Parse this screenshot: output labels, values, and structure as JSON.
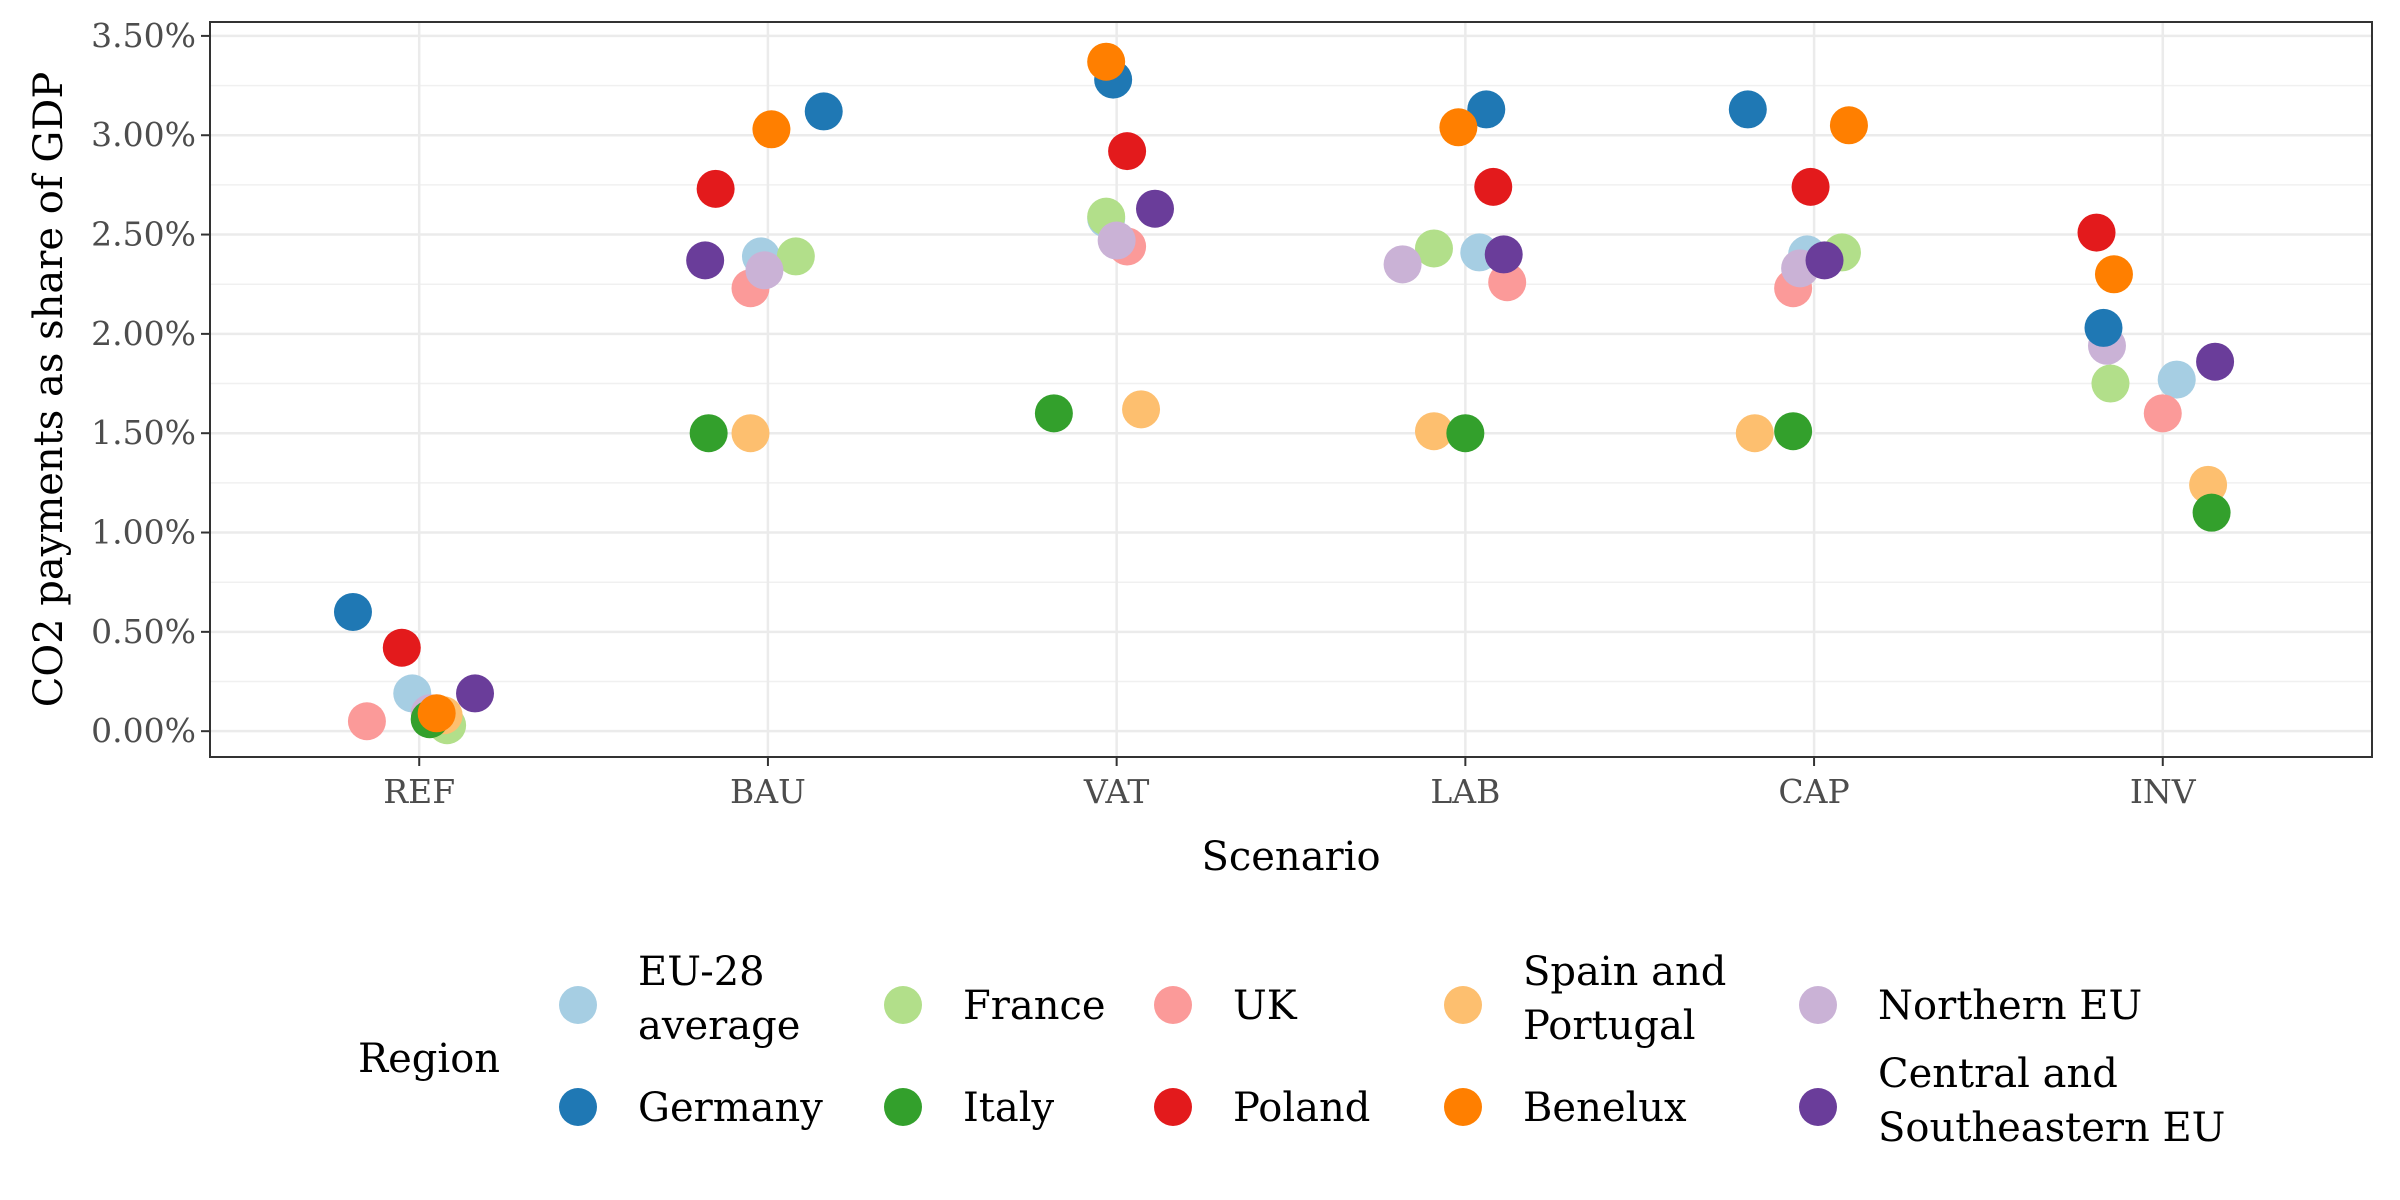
{
  "chart_data": {
    "type": "scatter",
    "title": "",
    "xlabel": "Scenario",
    "ylabel": "CO2 payments as share of GDP",
    "categories": [
      "REF",
      "BAU",
      "VAT",
      "LAB",
      "CAP",
      "INV"
    ],
    "ylim": [
      -0.13,
      3.57
    ],
    "yticks": [
      0.0,
      0.5,
      1.0,
      1.5,
      2.0,
      2.5,
      3.0,
      3.5
    ],
    "ytick_labels": [
      "0.00%",
      "0.50%",
      "1.00%",
      "1.50%",
      "2.00%",
      "2.50%",
      "3.00%",
      "3.50%"
    ],
    "grid": true,
    "jitter": true,
    "legend": {
      "title": "Region",
      "placement": "bottom"
    },
    "series": [
      {
        "name": "EU-28 average",
        "color": "#a6cee3",
        "values": [
          0.19,
          2.39,
          2.58,
          2.41,
          2.4,
          1.77
        ],
        "offsets": [
          -0.02,
          -0.02,
          -0.03,
          0.04,
          -0.02,
          0.04
        ]
      },
      {
        "name": "France",
        "color": "#b2df8a",
        "values": [
          0.03,
          2.39,
          2.59,
          2.43,
          2.41,
          1.75
        ],
        "offsets": [
          0.08,
          0.08,
          -0.03,
          -0.09,
          0.08,
          -0.15
        ]
      },
      {
        "name": "UK",
        "color": "#fb9a99",
        "values": [
          0.05,
          2.23,
          2.44,
          2.26,
          2.23,
          1.6
        ],
        "offsets": [
          -0.15,
          -0.05,
          0.03,
          0.12,
          -0.06,
          0.0
        ]
      },
      {
        "name": "Spain and Portugal",
        "color": "#fdbf6f",
        "values": [
          0.08,
          1.5,
          1.62,
          1.51,
          1.5,
          1.24
        ],
        "offsets": [
          0.07,
          -0.05,
          0.07,
          -0.09,
          -0.17,
          0.13
        ]
      },
      {
        "name": "Northern EU",
        "color": "#cab2d6",
        "values": [
          0.09,
          2.32,
          2.47,
          2.35,
          2.33,
          1.94
        ],
        "offsets": [
          0.03,
          -0.01,
          0.0,
          -0.18,
          -0.04,
          -0.16
        ]
      },
      {
        "name": "Germany",
        "color": "#1f78b4",
        "values": [
          0.6,
          3.12,
          3.28,
          3.13,
          3.13,
          2.03
        ],
        "offsets": [
          -0.19,
          0.16,
          -0.01,
          0.06,
          -0.19,
          -0.17
        ]
      },
      {
        "name": "Italy",
        "color": "#33a02c",
        "values": [
          0.06,
          1.5,
          1.6,
          1.5,
          1.51,
          1.1
        ],
        "offsets": [
          0.03,
          -0.17,
          -0.18,
          0.0,
          -0.06,
          0.14
        ]
      },
      {
        "name": "Poland",
        "color": "#e31a1c",
        "values": [
          0.42,
          2.73,
          2.92,
          2.74,
          2.74,
          2.51
        ],
        "offsets": [
          -0.05,
          -0.15,
          0.03,
          0.08,
          -0.01,
          -0.19
        ]
      },
      {
        "name": "Benelux",
        "color": "#ff7f00",
        "values": [
          0.09,
          3.03,
          3.37,
          3.04,
          3.05,
          2.3
        ],
        "offsets": [
          0.05,
          0.01,
          -0.03,
          -0.02,
          0.1,
          -0.14
        ]
      },
      {
        "name": "Central and Southeastern EU",
        "color": "#6a3d9a",
        "values": [
          0.19,
          2.37,
          2.63,
          2.4,
          2.37,
          1.86
        ],
        "offsets": [
          0.16,
          -0.18,
          0.11,
          0.11,
          0.03,
          0.15
        ]
      }
    ]
  }
}
